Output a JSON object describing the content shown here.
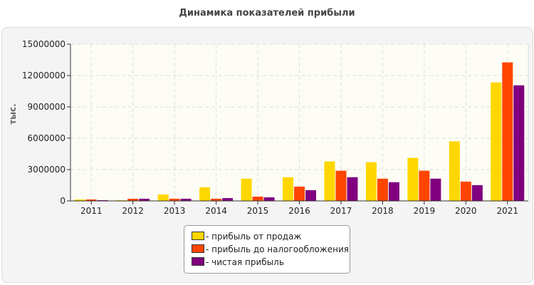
{
  "chart_data": {
    "type": "bar",
    "title": "Динамика показателей прибыли",
    "ylabel": "тыс.",
    "xlabel": "",
    "ylim": [
      0,
      15000000
    ],
    "yticks": [
      0,
      3000000,
      6000000,
      9000000,
      12000000,
      15000000
    ],
    "grid": true,
    "legend_position": "bottom",
    "categories": [
      "2011",
      "2012",
      "2013",
      "2014",
      "2015",
      "2016",
      "2017",
      "2018",
      "2019",
      "2020",
      "2021"
    ],
    "series": [
      {
        "name": "- прибыль от продаж",
        "color": "#FFD700",
        "values": [
          140000,
          70000,
          620000,
          1310000,
          2130000,
          2270000,
          3780000,
          3710000,
          4120000,
          5700000,
          11340000
        ]
      },
      {
        "name": "- прибыль до налогообложения",
        "color": "#FF4500",
        "values": [
          140000,
          210000,
          210000,
          210000,
          410000,
          1370000,
          2890000,
          2130000,
          2890000,
          1850000,
          13260000
        ]
      },
      {
        "name": "- чистая прибыль",
        "color": "#800080",
        "values": [
          70000,
          210000,
          210000,
          270000,
          340000,
          1030000,
          2270000,
          1790000,
          2130000,
          1510000,
          11060000
        ]
      }
    ]
  }
}
